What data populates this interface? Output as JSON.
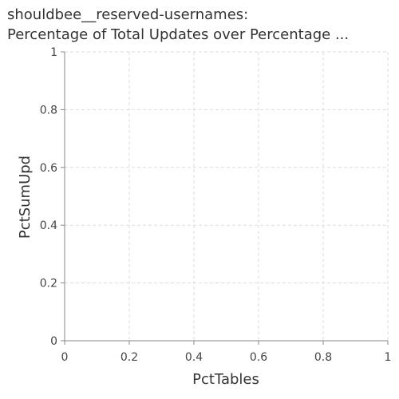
{
  "chart_data": {
    "type": "scatter",
    "title_line1": "shouldbee__reserved-usernames:",
    "title_line2": "Percentage of Total Updates over Percentage ...",
    "xlabel": "PctTables",
    "ylabel": "PctSumUpd",
    "xlim": [
      0,
      1
    ],
    "ylim": [
      0,
      1
    ],
    "xticks": [
      "0",
      "0.2",
      "0.4",
      "0.6",
      "0.8",
      "1"
    ],
    "yticks": [
      "0",
      "0.2",
      "0.4",
      "0.6",
      "0.8",
      "1"
    ],
    "grid": true,
    "series": []
  },
  "colors": {
    "grid": "#dddddd",
    "axis": "#888888",
    "text": "#333333"
  }
}
